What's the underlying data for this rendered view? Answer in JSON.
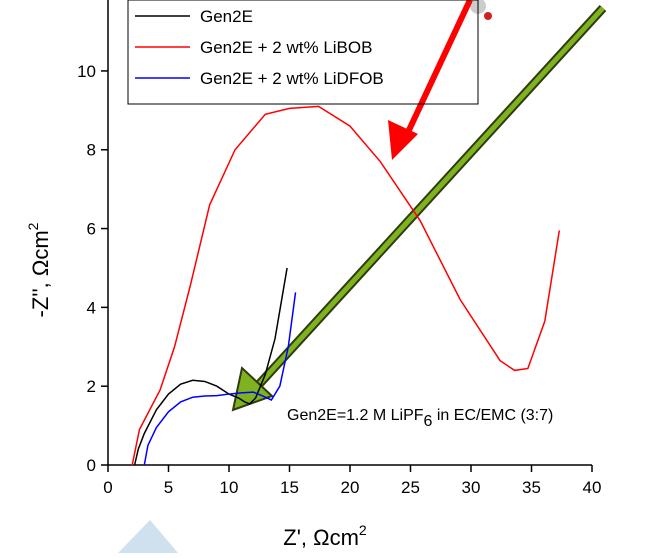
{
  "chart_data": {
    "type": "line",
    "xlabel": "Z', Ωcm",
    "xlabel_sup": "2",
    "ylabel": "-Z'', Ωcm",
    "ylabel_sup": "2",
    "annotation_parts": [
      "Gen2E=1.2 M LiPF",
      "6",
      " in EC/EMC (3:7)"
    ],
    "xlim": [
      0,
      40
    ],
    "xticks": [
      0,
      5,
      10,
      15,
      20,
      25,
      30,
      35,
      40
    ],
    "ylim": [
      0,
      11.8
    ],
    "yticks": [
      0,
      2,
      4,
      6,
      8,
      10
    ],
    "legend": "top-left",
    "series": [
      {
        "name": "Gen2E",
        "color": "#000000",
        "x": [
          2.2,
          2.5,
          3,
          4,
          5,
          6,
          7,
          8,
          9,
          10,
          10.8,
          11.3,
          11.7,
          12.2,
          13,
          13.8,
          14.8
        ],
        "values": [
          0,
          0.4,
          0.8,
          1.4,
          1.8,
          2.05,
          2.15,
          2.12,
          2.0,
          1.8,
          1.7,
          1.6,
          1.55,
          1.7,
          2.3,
          3.2,
          5.0
        ]
      },
      {
        "name": "Gen2E + 2 wt% LiBOB",
        "color": "#ff0000",
        "x": [
          2.0,
          2.6,
          4.3,
          5.5,
          6.8,
          8.4,
          10.5,
          13,
          15,
          17.4,
          20,
          22.5,
          25.8,
          29.1,
          32.4,
          33.6,
          34.7,
          36.1,
          37.3
        ],
        "values": [
          0,
          0.9,
          1.9,
          3.0,
          4.55,
          6.6,
          8.0,
          8.9,
          9.05,
          9.1,
          8.6,
          7.7,
          6.2,
          4.2,
          2.65,
          2.4,
          2.45,
          3.65,
          5.95
        ]
      },
      {
        "name": "Gen2E + 2 wt% LiDFOB",
        "color": "#0000ff",
        "x": [
          3.0,
          3.3,
          4,
          5,
          6,
          7,
          8,
          9,
          10,
          11,
          12,
          12.8,
          13.5,
          14.2,
          14.9,
          15.5
        ],
        "values": [
          0,
          0.5,
          0.95,
          1.35,
          1.6,
          1.72,
          1.75,
          1.76,
          1.8,
          1.83,
          1.85,
          1.75,
          1.65,
          2.0,
          3.0,
          4.38
        ]
      }
    ]
  }
}
